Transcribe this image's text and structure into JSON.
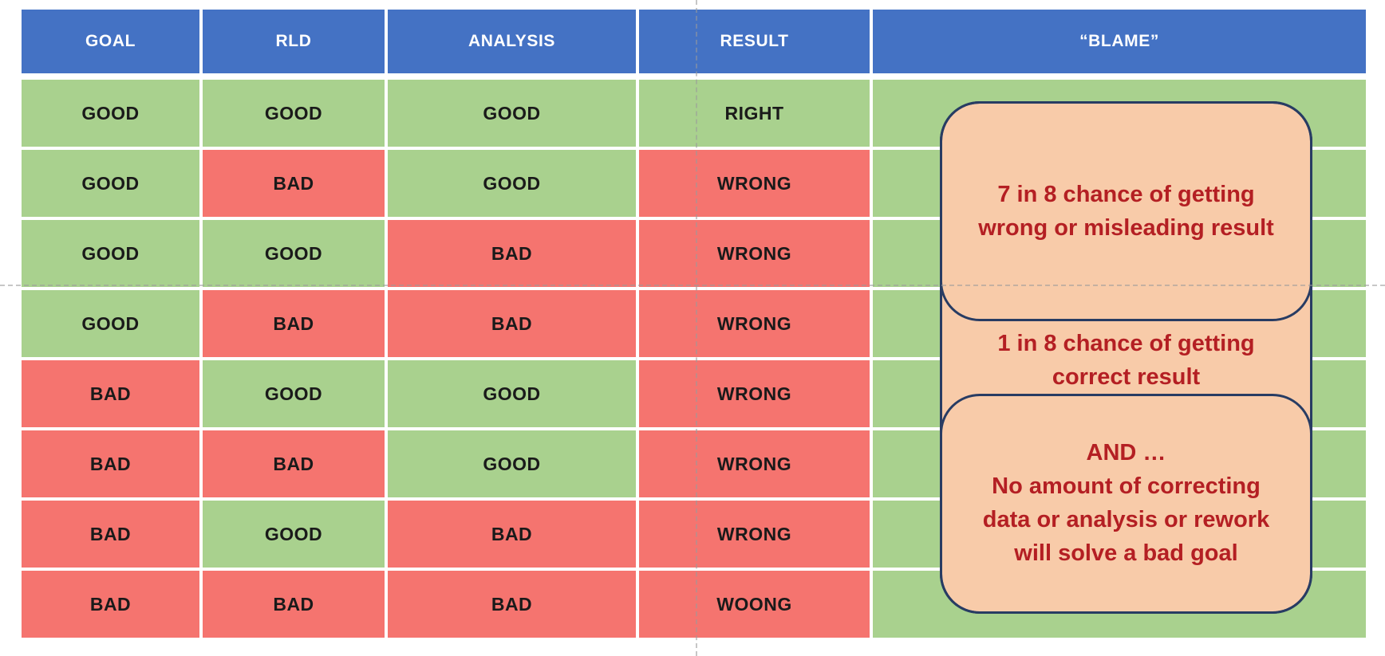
{
  "table": {
    "headers": [
      "GOAL",
      "RLD",
      "ANALYSIS",
      "RESULT",
      "“BLAME”"
    ],
    "rows": [
      {
        "cells": [
          {
            "text": "GOOD",
            "state": "good"
          },
          {
            "text": "GOOD",
            "state": "good"
          },
          {
            "text": "GOOD",
            "state": "good"
          },
          {
            "text": "RIGHT",
            "state": "good"
          }
        ]
      },
      {
        "cells": [
          {
            "text": "GOOD",
            "state": "good"
          },
          {
            "text": "BAD",
            "state": "bad"
          },
          {
            "text": "GOOD",
            "state": "good"
          },
          {
            "text": "WRONG",
            "state": "bad"
          }
        ]
      },
      {
        "cells": [
          {
            "text": "GOOD",
            "state": "good"
          },
          {
            "text": "GOOD",
            "state": "good"
          },
          {
            "text": "BAD",
            "state": "bad"
          },
          {
            "text": "WRONG",
            "state": "bad"
          }
        ]
      },
      {
        "cells": [
          {
            "text": "GOOD",
            "state": "good"
          },
          {
            "text": "BAD",
            "state": "bad"
          },
          {
            "text": "BAD",
            "state": "bad"
          },
          {
            "text": "WRONG",
            "state": "bad"
          }
        ]
      },
      {
        "cells": [
          {
            "text": "BAD",
            "state": "bad"
          },
          {
            "text": "GOOD",
            "state": "good"
          },
          {
            "text": "GOOD",
            "state": "good"
          },
          {
            "text": "WRONG",
            "state": "bad"
          }
        ]
      },
      {
        "cells": [
          {
            "text": "BAD",
            "state": "bad"
          },
          {
            "text": "BAD",
            "state": "bad"
          },
          {
            "text": "GOOD",
            "state": "good"
          },
          {
            "text": "WRONG",
            "state": "bad"
          }
        ]
      },
      {
        "cells": [
          {
            "text": "BAD",
            "state": "bad"
          },
          {
            "text": "GOOD",
            "state": "good"
          },
          {
            "text": "BAD",
            "state": "bad"
          },
          {
            "text": "WRONG",
            "state": "bad"
          }
        ]
      },
      {
        "cells": [
          {
            "text": "BAD",
            "state": "bad"
          },
          {
            "text": "BAD",
            "state": "bad"
          },
          {
            "text": "BAD",
            "state": "bad"
          },
          {
            "text": "WOONG",
            "state": "bad"
          }
        ]
      }
    ]
  },
  "callouts": {
    "top": "7 in 8 chance of getting\nwrong or misleading result",
    "middle": "1 in 8 chance of getting\ncorrect result",
    "bottom": "AND …\nNo amount of correcting\ndata or analysis or rework\nwill solve a bad goal"
  },
  "colors": {
    "header_blue": "#4472C4",
    "good_green": "#A9D18E",
    "bad_red": "#F5746F",
    "callout_peach": "#F8CBA9",
    "callout_border_navy": "#283C63",
    "callout_text_red": "#B41F23",
    "guide_gray": "#9B9B9B"
  }
}
